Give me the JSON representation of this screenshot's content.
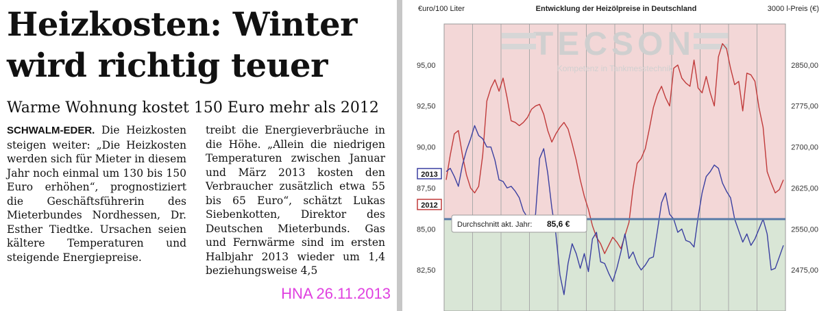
{
  "clipping": {
    "headline": "Heizkosten: Winter wird richtig teuer",
    "subhead": "Warme Wohnung kostet 150 Euro mehr als 2012",
    "dateline": "SCHWALM-EDER.",
    "col1_text": "Die Heizkosten steigen weiter: „Die Heizkosten werden sich für Mieter in diesem Jahr noch einmal um 130 bis 150 Euro erhöhen“, prognostiziert die Geschäftsführerin des Mieterbundes Nordhessen, Dr. Esther Tiedtke. Ursachen seien kältere Temperaturen und steigende Energiepreise.",
    "col2_text": "treibt die Energieverbräuche in die Höhe. „Allein die niedrigen Temperaturen zwischen Januar und März 2013 kosten den Verbraucher zusätzlich etwa 55 bis 65 Euro“, schätzt Lukas Siebenkotten, Direktor des Deutschen Mieterbunds. Gas und Fernwärme sind im ersten Halbjahr 2013 wieder um 1,4 beziehungsweise 4,5",
    "source": "HNA 26.11.2013"
  },
  "chart_data": {
    "type": "line",
    "title": "Entwicklung der Heizölpreise in Deutschland",
    "ylabel": "€uro/100 Liter",
    "y2label": "3000 l-Preis (€)",
    "ylim": [
      80,
      97.5
    ],
    "yticks": [
      "82,50",
      "85,00",
      "87,50",
      "90,00",
      "92,50",
      "95,00"
    ],
    "y2ticks": [
      "2475,00",
      "2550,00",
      "2625,00",
      "2700,00",
      "2775,00",
      "2850,00"
    ],
    "watermark": "TECSON",
    "watermark_sub": "Kompetenz in Tankmesstechnik",
    "average_label": "Durchschnitt akt. Jahr:",
    "average_value": "85,6 €",
    "average": 85.6,
    "above_color": "#f3d7d7",
    "below_color": "#d9e6d6",
    "average_line_color": "#5a7ba8",
    "series": [
      {
        "name": "2012",
        "color": "#c03a3a",
        "values": [
          88.0,
          89.5,
          90.8,
          91.0,
          89.5,
          88.3,
          87.5,
          87.2,
          87.6,
          89.5,
          92.8,
          93.6,
          94.1,
          93.4,
          94.2,
          93.0,
          91.6,
          91.5,
          91.3,
          91.5,
          91.8,
          92.3,
          92.5,
          92.6,
          92.0,
          91.0,
          90.3,
          90.8,
          91.2,
          91.5,
          91.1,
          90.2,
          89.2,
          88.0,
          87.0,
          86.2,
          85.2,
          84.5,
          84.1,
          83.5,
          84.0,
          84.5,
          84.2,
          83.8,
          84.6,
          85.4,
          87.5,
          89.0,
          89.3,
          89.9,
          91.1,
          92.4,
          93.2,
          93.7,
          93.0,
          92.5,
          94.8,
          95.0,
          94.2,
          93.9,
          93.7,
          95.3,
          93.6,
          93.3,
          94.3,
          93.3,
          92.5,
          95.5,
          96.3,
          96.0,
          94.8,
          93.8,
          94.0,
          92.2,
          94.5,
          94.4,
          94.0,
          92.4,
          91.2,
          88.5,
          87.8,
          87.2,
          87.4,
          88.0
        ]
      },
      {
        "name": "2013",
        "color": "#3a3fa0",
        "values": [
          88.5,
          88.7,
          88.2,
          87.6,
          88.9,
          89.8,
          90.5,
          91.3,
          90.7,
          90.5,
          90.0,
          90.0,
          89.2,
          88.0,
          87.9,
          87.5,
          87.6,
          87.3,
          86.9,
          86.1,
          85.7,
          85.4,
          85.9,
          89.3,
          89.9,
          88.4,
          86.3,
          84.7,
          82.2,
          81.0,
          82.9,
          84.1,
          83.5,
          82.6,
          83.5,
          82.4,
          84.4,
          84.8,
          83.0,
          82.9,
          82.3,
          81.8,
          82.6,
          83.6,
          84.7,
          83.2,
          83.6,
          82.9,
          82.5,
          82.8,
          83.2,
          83.3,
          84.9,
          86.6,
          87.2,
          85.9,
          85.6,
          84.8,
          85.0,
          84.3,
          84.2,
          83.9,
          85.7,
          87.2,
          88.2,
          88.5,
          88.9,
          88.7,
          87.8,
          87.3,
          86.9,
          85.6,
          84.9,
          84.2,
          84.7,
          84.0,
          84.4,
          85.0,
          85.6,
          84.7,
          82.5,
          82.6,
          83.3,
          84.0
        ]
      }
    ]
  }
}
